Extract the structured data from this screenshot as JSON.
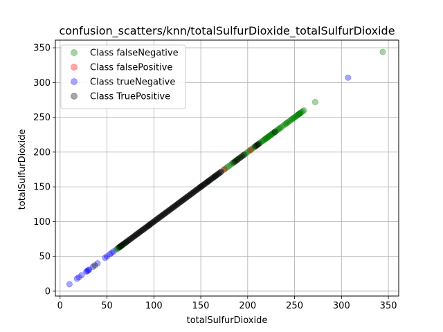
{
  "chart_data": {
    "type": "scatter",
    "title": "confusion_scatters/knn/totalSulfurDioxide_totalSulfurDioxide",
    "xlabel": "totalSulfurDioxide",
    "ylabel": "totalSulfurDioxide",
    "xlim": [
      -5,
      361
    ],
    "ylim": [
      -7,
      361
    ],
    "xticks": [
      0,
      50,
      100,
      150,
      200,
      250,
      300,
      350
    ],
    "yticks": [
      0,
      50,
      100,
      150,
      200,
      250,
      300,
      350
    ],
    "grid": true,
    "legend_position": "top-left",
    "series": [
      {
        "name": "Class falseNegative",
        "color": "#008000",
        "alpha": 0.35,
        "points": [
          [
            60,
            60
          ],
          [
            63,
            63
          ],
          [
            66,
            66
          ],
          [
            70,
            70
          ],
          [
            95,
            95
          ],
          [
            150,
            150
          ],
          [
            158,
            158
          ],
          [
            165,
            165
          ],
          [
            175,
            175
          ],
          [
            180,
            180
          ],
          [
            185,
            185
          ],
          [
            190,
            190
          ],
          [
            195,
            195
          ],
          [
            200,
            200
          ],
          [
            205,
            205
          ],
          [
            210,
            210
          ],
          [
            215,
            215
          ],
          [
            218,
            218
          ],
          [
            220,
            220
          ],
          [
            222,
            222
          ],
          [
            224,
            224
          ],
          [
            226,
            226
          ],
          [
            228,
            228
          ],
          [
            232,
            232
          ],
          [
            235,
            235
          ],
          [
            240,
            240
          ],
          [
            243,
            243
          ],
          [
            247,
            247
          ],
          [
            250,
            250
          ],
          [
            253,
            253
          ],
          [
            255,
            255
          ],
          [
            256,
            256
          ],
          [
            260,
            260
          ],
          [
            272,
            272
          ],
          [
            344,
            344
          ]
        ]
      },
      {
        "name": "Class falsePositive",
        "color": "#ff0000",
        "alpha": 0.35,
        "points": [
          [
            175,
            175
          ],
          [
            203,
            203
          ]
        ]
      },
      {
        "name": "Class trueNegative",
        "color": "#0000ff",
        "alpha": 0.35,
        "points": [
          [
            10,
            10
          ],
          [
            18,
            18
          ],
          [
            20,
            20
          ],
          [
            23,
            23
          ],
          [
            28,
            28
          ],
          [
            29,
            29
          ],
          [
            30,
            30
          ],
          [
            31,
            31
          ],
          [
            35,
            35
          ],
          [
            40,
            40
          ],
          [
            48,
            48
          ],
          [
            50,
            50
          ],
          [
            53,
            53
          ],
          [
            55,
            55
          ],
          [
            57,
            57
          ],
          [
            307,
            307
          ]
        ]
      },
      {
        "name": "Class TruePositive",
        "color": "#000000",
        "alpha": 0.35,
        "points": [
          [
            37,
            37
          ],
          [
            63,
            63
          ],
          [
            66,
            66
          ],
          [
            70,
            70
          ],
          [
            73,
            73
          ],
          [
            76,
            76
          ],
          [
            79,
            79
          ],
          [
            82,
            82
          ],
          [
            85,
            85
          ],
          [
            88,
            88
          ],
          [
            91,
            91
          ],
          [
            94,
            94
          ],
          [
            97,
            97
          ],
          [
            100,
            100
          ],
          [
            103,
            103
          ],
          [
            106,
            106
          ],
          [
            109,
            109
          ],
          [
            112,
            112
          ],
          [
            115,
            115
          ],
          [
            118,
            118
          ],
          [
            121,
            121
          ],
          [
            124,
            124
          ],
          [
            127,
            127
          ],
          [
            130,
            130
          ],
          [
            133,
            133
          ],
          [
            136,
            136
          ],
          [
            139,
            139
          ],
          [
            142,
            142
          ],
          [
            145,
            145
          ],
          [
            148,
            148
          ],
          [
            151,
            151
          ],
          [
            154,
            154
          ],
          [
            157,
            157
          ],
          [
            160,
            160
          ],
          [
            163,
            163
          ],
          [
            166,
            166
          ],
          [
            169,
            169
          ],
          [
            172,
            172
          ],
          [
            185,
            185
          ],
          [
            190,
            190
          ],
          [
            196,
            196
          ],
          [
            208,
            208
          ],
          [
            212,
            212
          ],
          [
            229,
            229
          ]
        ]
      }
    ]
  }
}
